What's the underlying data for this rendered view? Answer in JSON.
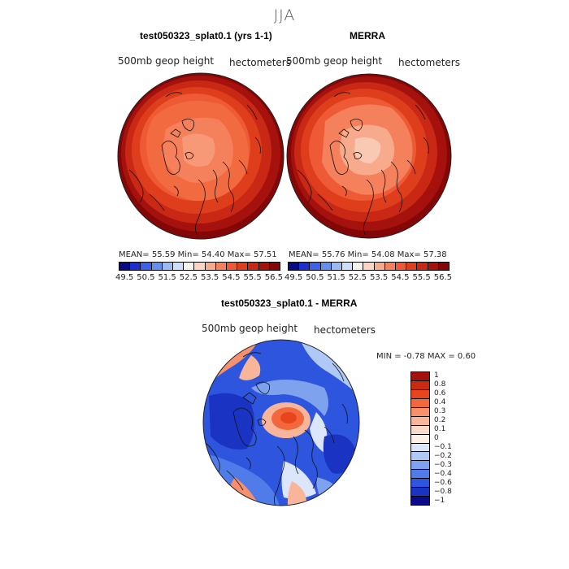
{
  "title": "JJA",
  "panels": [
    {
      "title": "test050323_splat0.1 (yrs 1-1)",
      "variable": "500mb geop height",
      "units": "hectometers",
      "stats_text": "MEAN=  55.59   Min=  54.40   Max=  57.51"
    },
    {
      "title": "MERRA",
      "variable": "500mb geop height",
      "units": "hectometers",
      "stats_text": "MEAN=  55.76   Min=  54.08   Max=  57.38"
    },
    {
      "title": "test050323_splat0.1 - MERRA",
      "variable": "500mb geop height",
      "units": "hectometers",
      "stats_text": "MIN =   -0.78 MAX =    0.60"
    }
  ],
  "abs_colorbar": {
    "labels": [
      "49.5",
      "50.5",
      "51.5",
      "52.5",
      "53.5",
      "54.5",
      "55.5",
      "56.5"
    ],
    "colors": [
      "#0b0a86",
      "#1c2fd0",
      "#3a62e8",
      "#6390ee",
      "#9bbaf4",
      "#cfdff9",
      "#f7f1ec",
      "#fbd5c4",
      "#f8ab8c",
      "#f5805c",
      "#ee5a36",
      "#df3e1c",
      "#c82814",
      "#a5110c",
      "#850606"
    ]
  },
  "diff_colorbar": {
    "labels": [
      "1",
      "0.8",
      "0.6",
      "0.4",
      "0.3",
      "0.2",
      "0.1",
      "0",
      "−0.1",
      "−0.2",
      "−0.3",
      "−0.4",
      "−0.6",
      "−0.8",
      "−1"
    ],
    "colors": [
      "#a5110c",
      "#cb2a12",
      "#e8441e",
      "#f2683c",
      "#f7906c",
      "#f9b59a",
      "#fbd9c8",
      "#fdf1e6",
      "#dce6fa",
      "#b0c8f5",
      "#7ea2ee",
      "#4f7ce8",
      "#2d55de",
      "#1a33c2",
      "#0a0a8c"
    ]
  }
}
